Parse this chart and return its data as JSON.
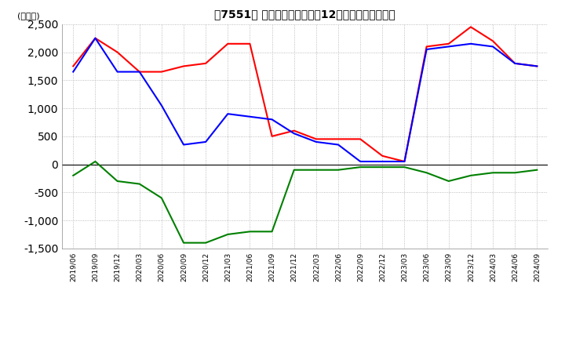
{
  "title": "【7551】 キャッシュフローの12か月移動合計の推移",
  "ylabel": "(百万円)",
  "ylim": [
    -1500,
    2500
  ],
  "yticks": [
    -1500,
    -1000,
    -500,
    0,
    500,
    1000,
    1500,
    2000,
    2500
  ],
  "background_color": "#ffffff",
  "grid_color": "#aaaaaa",
  "dates": [
    "2019/06",
    "2019/09",
    "2019/12",
    "2020/03",
    "2020/06",
    "2020/09",
    "2020/12",
    "2021/03",
    "2021/06",
    "2021/09",
    "2021/12",
    "2022/03",
    "2022/06",
    "2022/09",
    "2022/12",
    "2023/03",
    "2023/06",
    "2023/09",
    "2023/12",
    "2024/03",
    "2024/06",
    "2024/09"
  ],
  "operating_cf": [
    1750,
    2250,
    2000,
    1650,
    1650,
    1750,
    1800,
    2150,
    2150,
    500,
    600,
    450,
    450,
    450,
    150,
    50,
    2100,
    2150,
    2450,
    2200,
    1800,
    1750
  ],
  "investing_cf": [
    -200,
    50,
    -300,
    -350,
    -600,
    -1400,
    -1400,
    -1250,
    -1200,
    -1200,
    -100,
    -100,
    -100,
    -50,
    -50,
    -50,
    -150,
    -300,
    -200,
    -150,
    -150,
    -100
  ],
  "free_cf": [
    1650,
    2250,
    1650,
    1650,
    1050,
    350,
    400,
    900,
    850,
    800,
    550,
    400,
    350,
    50,
    50,
    50,
    2050,
    2100,
    2150,
    2100,
    1800,
    1750
  ],
  "operating_color": "#ff0000",
  "investing_color": "#008000",
  "free_color": "#0000ff"
}
